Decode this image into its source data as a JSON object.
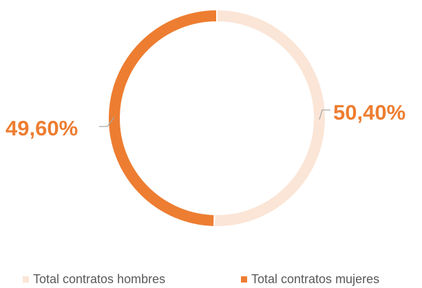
{
  "chart_data": {
    "type": "pie",
    "style": "donut",
    "categories": [
      "Total contratos hombres",
      "Total contratos mujeres"
    ],
    "values": [
      50.4,
      49.6
    ],
    "labels": [
      "50,40%",
      "49,60%"
    ],
    "colors": [
      "#FBE5D6",
      "#ED7D31"
    ],
    "label_color": "#ED7D31",
    "legend_position": "bottom",
    "start_angle": "top",
    "direction": "clockwise"
  }
}
